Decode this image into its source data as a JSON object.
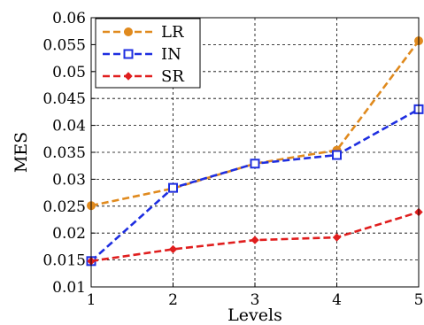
{
  "chart_data": {
    "type": "line",
    "xlabel": "Levels",
    "ylabel": "MES",
    "x": [
      1,
      2,
      3,
      4,
      5
    ],
    "xlim": [
      1,
      5
    ],
    "ylim": [
      0.01,
      0.06
    ],
    "xticks": [
      "1",
      "2",
      "3",
      "4",
      "5"
    ],
    "yticks": [
      "0.01",
      "0.015",
      "0.02",
      "0.025",
      "0.03",
      "0.035",
      "0.04",
      "0.045",
      "0.05",
      "0.055",
      "0.06"
    ],
    "grid": true,
    "legend_position": "top-left",
    "series": [
      {
        "name": "LR",
        "color": "#e08a1e",
        "marker": "circle",
        "values": [
          0.0251,
          0.0283,
          0.0329,
          0.0354,
          0.0557
        ]
      },
      {
        "name": "IN",
        "color": "#1e2ee0",
        "marker": "square",
        "values": [
          0.0148,
          0.0284,
          0.0329,
          0.0345,
          0.043
        ]
      },
      {
        "name": "SR",
        "color": "#e01e1e",
        "marker": "diamond",
        "values": [
          0.0148,
          0.017,
          0.0187,
          0.0192,
          0.0239
        ]
      }
    ]
  }
}
